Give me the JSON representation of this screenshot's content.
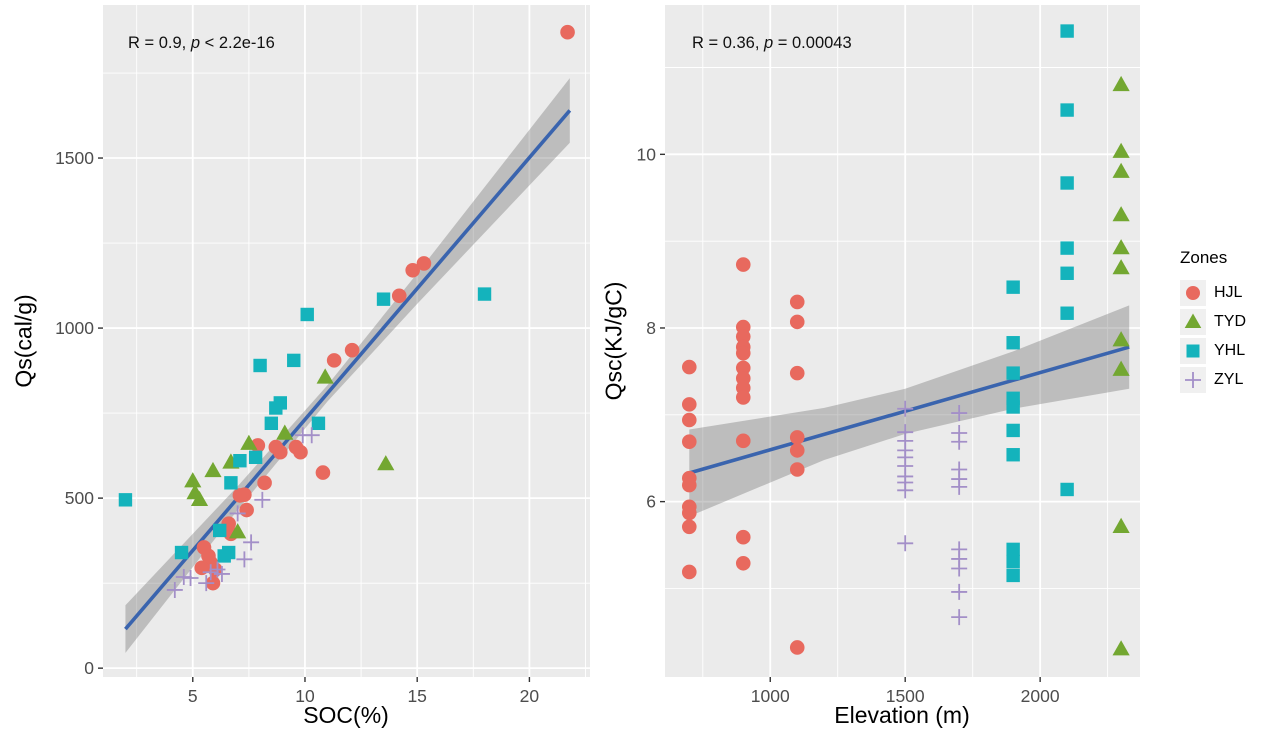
{
  "colors": {
    "panel_bg": "#EBEBEB",
    "grid": "#FFFFFF",
    "tick": "#333333",
    "tick_label": "#4D4D4D",
    "regression_line": "#3A64AE",
    "confidence_band": "rgba(115,115,115,0.38)",
    "hjl": "#E8695E",
    "tyd": "#73A731",
    "yhl": "#14B3BC",
    "zyl": "#A38FC8"
  },
  "legend": {
    "title": "Zones",
    "items": [
      {
        "id": "HJL",
        "label": "HJL",
        "shape": "circle",
        "color": "#E8695E"
      },
      {
        "id": "TYD",
        "label": "TYD",
        "shape": "triangle",
        "color": "#73A731"
      },
      {
        "id": "YHL",
        "label": "YHL",
        "shape": "square",
        "color": "#14B3BC"
      },
      {
        "id": "ZYL",
        "label": "ZYL",
        "shape": "plus",
        "color": "#A38FC8"
      }
    ]
  },
  "chart_data": [
    {
      "type": "scatter",
      "panel": "left",
      "annotation": {
        "prefix": "R = 0.9, ",
        "p_var": "p",
        "suffix": " < 2.2e-16"
      },
      "xlabel": "SOC(%)",
      "ylabel": "Qs(cal/g)",
      "xlim": [
        1.0,
        22.7
      ],
      "ylim": [
        -26,
        1950
      ],
      "xticks": [
        5,
        10,
        15,
        20
      ],
      "xminor": [
        2.5,
        7.5,
        12.5,
        17.5,
        22.5
      ],
      "yticks": [
        0,
        500,
        1000,
        1500
      ],
      "yminor": [
        250,
        750,
        1250,
        1750
      ],
      "regression": {
        "x": [
          2.0,
          21.8
        ],
        "y": [
          115,
          1640
        ]
      },
      "band": {
        "x": [
          2.0,
          7.0,
          11.0,
          15.0,
          21.8
        ],
        "upper": [
          185,
          535,
          832,
          1161,
          1735
        ],
        "lower": [
          45,
          465,
          784,
          1071,
          1545
        ]
      },
      "series": [
        {
          "zone": "HJL",
          "points": [
            [
              21.7,
              1870
            ],
            [
              15.3,
              1190
            ],
            [
              14.8,
              1170
            ],
            [
              14.2,
              1095
            ],
            [
              12.1,
              935
            ],
            [
              11.3,
              905
            ],
            [
              10.8,
              575
            ],
            [
              9.8,
              635
            ],
            [
              9.6,
              650
            ],
            [
              8.9,
              635
            ],
            [
              8.7,
              650
            ],
            [
              8.2,
              545
            ],
            [
              7.9,
              655
            ],
            [
              7.4,
              465
            ],
            [
              7.3,
              510
            ],
            [
              7.1,
              508
            ],
            [
              6.7,
              395
            ],
            [
              6.6,
              425
            ],
            [
              6.0,
              290
            ],
            [
              5.9,
              250
            ],
            [
              5.8,
              310
            ],
            [
              5.7,
              330
            ],
            [
              5.5,
              355
            ],
            [
              5.4,
              295
            ]
          ]
        },
        {
          "zone": "TYD",
          "points": [
            [
              13.6,
              600
            ],
            [
              10.9,
              855
            ],
            [
              9.1,
              690
            ],
            [
              7.5,
              660
            ],
            [
              7.0,
              400
            ],
            [
              6.7,
              605
            ],
            [
              5.9,
              580
            ],
            [
              5.3,
              495
            ],
            [
              5.1,
              515
            ],
            [
              5.0,
              550
            ]
          ]
        },
        {
          "zone": "YHL",
          "points": [
            [
              18.0,
              1100
            ],
            [
              13.5,
              1085
            ],
            [
              10.6,
              720
            ],
            [
              10.1,
              1040
            ],
            [
              9.5,
              905
            ],
            [
              8.9,
              780
            ],
            [
              8.7,
              765
            ],
            [
              8.5,
              720
            ],
            [
              8.0,
              890
            ],
            [
              7.8,
              620
            ],
            [
              7.1,
              610
            ],
            [
              6.7,
              545
            ],
            [
              6.6,
              340
            ],
            [
              6.4,
              330
            ],
            [
              6.2,
              405
            ],
            [
              4.5,
              340
            ],
            [
              2.0,
              495
            ]
          ]
        },
        {
          "zone": "ZYL",
          "points": [
            [
              10.3,
              685
            ],
            [
              9.9,
              685
            ],
            [
              8.1,
              495
            ],
            [
              7.6,
              370
            ],
            [
              7.3,
              320
            ],
            [
              7.0,
              455
            ],
            [
              6.3,
              277
            ],
            [
              6.1,
              290
            ],
            [
              5.8,
              282
            ],
            [
              5.6,
              250
            ],
            [
              4.9,
              265
            ],
            [
              4.6,
              268
            ],
            [
              4.2,
              230
            ]
          ]
        }
      ]
    },
    {
      "type": "scatter",
      "panel": "right",
      "annotation": {
        "prefix": "R = 0.36, ",
        "p_var": "p",
        "suffix": " = 0.00043"
      },
      "xlabel": "Elevation (m)",
      "ylabel": "Qsc(KJ/gC)",
      "xlim": [
        610,
        2370
      ],
      "ylim": [
        3.98,
        11.72
      ],
      "xticks": [
        1000,
        1500,
        2000
      ],
      "xminor": [
        750,
        1250,
        1750,
        2250
      ],
      "yticks": [
        6,
        8,
        10
      ],
      "yminor": [
        5,
        7,
        9,
        11
      ],
      "regression": {
        "x": [
          700,
          2330
        ],
        "y": [
          6.33,
          7.78
        ]
      },
      "band": {
        "x": [
          700,
          1200,
          1500,
          1900,
          2330
        ],
        "upper": [
          6.83,
          7.08,
          7.3,
          7.73,
          8.26
        ],
        "lower": [
          5.83,
          6.48,
          6.78,
          7.07,
          7.3
        ]
      },
      "series": [
        {
          "zone": "HJL",
          "points": [
            [
              700,
              7.55
            ],
            [
              700,
              7.12
            ],
            [
              700,
              6.94
            ],
            [
              700,
              6.69
            ],
            [
              700,
              6.27
            ],
            [
              700,
              6.19
            ],
            [
              700,
              5.94
            ],
            [
              700,
              5.87
            ],
            [
              700,
              5.71
            ],
            [
              700,
              5.19
            ],
            [
              900,
              8.73
            ],
            [
              900,
              8.01
            ],
            [
              900,
              7.9
            ],
            [
              900,
              7.78
            ],
            [
              900,
              7.71
            ],
            [
              900,
              7.54
            ],
            [
              900,
              7.42
            ],
            [
              900,
              7.31
            ],
            [
              900,
              7.2
            ],
            [
              900,
              6.7
            ],
            [
              900,
              5.59
            ],
            [
              900,
              5.29
            ],
            [
              1100,
              8.3
            ],
            [
              1100,
              8.07
            ],
            [
              1100,
              7.48
            ],
            [
              1100,
              6.74
            ],
            [
              1100,
              6.59
            ],
            [
              1100,
              6.37
            ],
            [
              1100,
              4.32
            ]
          ]
        },
        {
          "zone": "TYD",
          "points": [
            [
              2300,
              10.8
            ],
            [
              2300,
              10.03
            ],
            [
              2300,
              9.8
            ],
            [
              2300,
              9.3
            ],
            [
              2300,
              8.92
            ],
            [
              2300,
              8.69
            ],
            [
              2300,
              7.86
            ],
            [
              2300,
              7.52
            ],
            [
              2300,
              5.71
            ],
            [
              2300,
              4.3
            ]
          ]
        },
        {
          "zone": "YHL",
          "points": [
            [
              1900,
              8.47
            ],
            [
              1900,
              7.83
            ],
            [
              1900,
              7.48
            ],
            [
              1900,
              7.19
            ],
            [
              1900,
              7.09
            ],
            [
              1900,
              6.82
            ],
            [
              1900,
              6.54
            ],
            [
              1900,
              5.45
            ],
            [
              1900,
              5.31
            ],
            [
              1900,
              5.15
            ],
            [
              2100,
              11.42
            ],
            [
              2100,
              10.51
            ],
            [
              2100,
              9.67
            ],
            [
              2100,
              8.92
            ],
            [
              2100,
              8.63
            ],
            [
              2100,
              8.17
            ],
            [
              2100,
              6.14
            ]
          ]
        },
        {
          "zone": "ZYL",
          "points": [
            [
              1500,
              7.07
            ],
            [
              1500,
              6.8
            ],
            [
              1500,
              6.7
            ],
            [
              1500,
              6.59
            ],
            [
              1500,
              6.51
            ],
            [
              1500,
              6.41
            ],
            [
              1500,
              6.29
            ],
            [
              1500,
              6.22
            ],
            [
              1500,
              6.13
            ],
            [
              1500,
              5.52
            ],
            [
              1700,
              7.02
            ],
            [
              1700,
              6.79
            ],
            [
              1700,
              6.69
            ],
            [
              1700,
              6.37
            ],
            [
              1700,
              6.26
            ],
            [
              1700,
              6.17
            ],
            [
              1700,
              5.45
            ],
            [
              1700,
              5.34
            ],
            [
              1700,
              5.23
            ],
            [
              1700,
              4.96
            ],
            [
              1700,
              4.67
            ]
          ]
        }
      ]
    }
  ]
}
